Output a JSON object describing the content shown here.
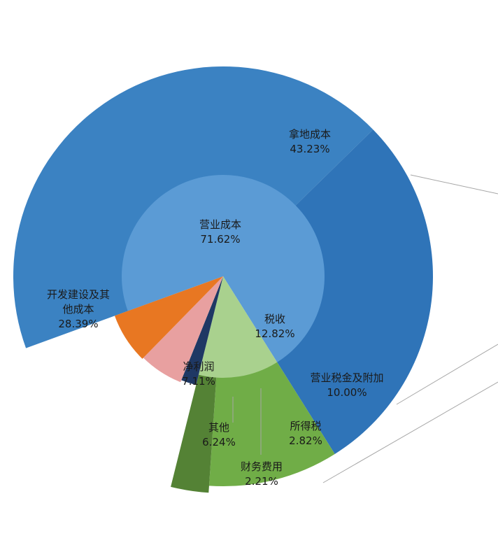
{
  "chart_data": {
    "type": "sunburst",
    "colors": {
      "operating_cost": "#5b9bd5",
      "land_cost": "#3b82c2",
      "dev_cost": "#2f74b8",
      "tax": "#a9d18e",
      "business_tax": "#70ad47",
      "income_tax": "#548235",
      "net_profit": "#e87722",
      "other": "#e8a0a0",
      "finance_cost": "#1f3864",
      "leader_line": "#a6a6a6"
    },
    "inner": [
      {
        "name": "营业成本",
        "value": 71.62,
        "label": "71.62%",
        "color_key": "operating_cost",
        "children": [
          {
            "name": "拿地成本",
            "value": 43.23,
            "label": "43.23%",
            "color_key": "land_cost"
          },
          {
            "name": "开发建设及其他成本",
            "name_lines": [
              "开发建设及其",
              "他成本"
            ],
            "value": 28.39,
            "label": "28.39%",
            "color_key": "dev_cost"
          }
        ]
      },
      {
        "name": "税收",
        "value": 12.82,
        "label": "12.82%",
        "color_key": "tax",
        "children": [
          {
            "name": "营业税金及附加",
            "value": 10.0,
            "label": "10.00%",
            "color_key": "business_tax"
          },
          {
            "name": "所得税",
            "value": 2.82,
            "label": "2.82%",
            "color_key": "income_tax"
          }
        ]
      },
      {
        "name": "财务费用",
        "value": 2.21,
        "label": "2.21%",
        "color_key": "finance_cost"
      },
      {
        "name": "其他",
        "value": 6.24,
        "label": "6.24%",
        "color_key": "other"
      },
      {
        "name": "净利润",
        "value": 7.11,
        "label": "7.11%",
        "color_key": "net_profit"
      }
    ]
  }
}
